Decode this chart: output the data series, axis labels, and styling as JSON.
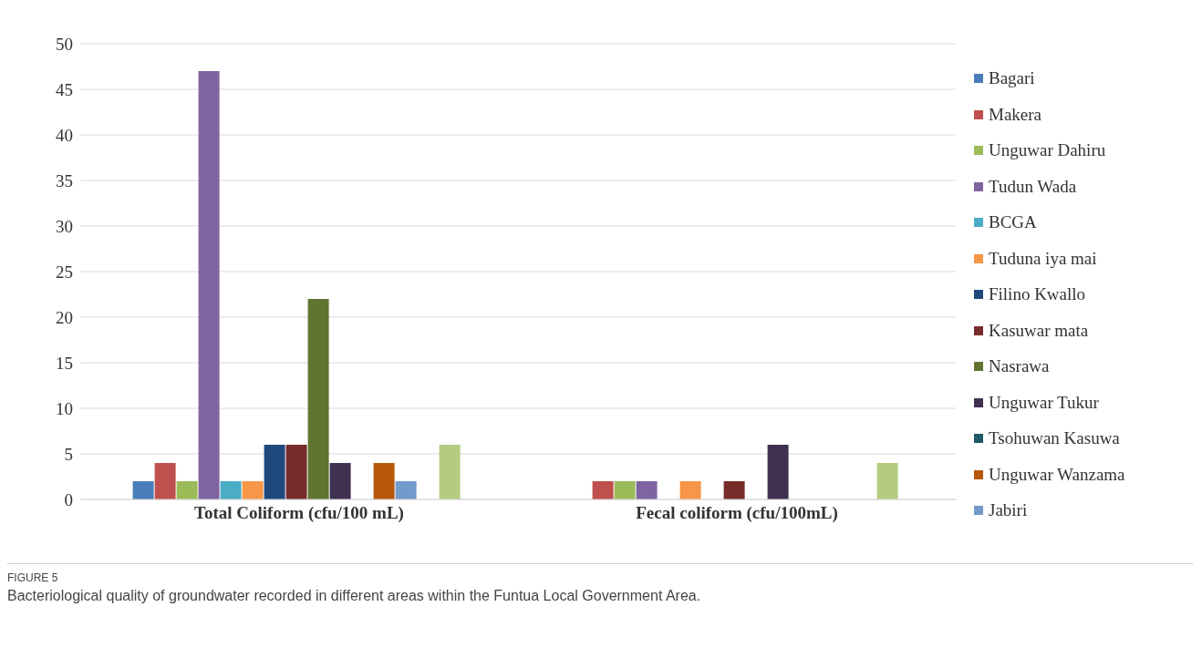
{
  "chart_data": {
    "type": "bar",
    "categories": [
      "Total Coliform (cfu/100 mL)",
      "Fecal coliform (cfu/100mL)"
    ],
    "series": [
      {
        "name": "Bagari",
        "color": "#4a7ebb",
        "values": [
          2,
          0
        ]
      },
      {
        "name": "Makera",
        "color": "#c0504d",
        "values": [
          4,
          2
        ]
      },
      {
        "name": "Unguwar Dahiru",
        "color": "#9bbb59",
        "values": [
          2,
          2
        ]
      },
      {
        "name": "Tudun Wada",
        "color": "#8064a2",
        "values": [
          47,
          2
        ]
      },
      {
        "name": "BCGA",
        "color": "#4bacc6",
        "values": [
          2,
          0
        ]
      },
      {
        "name": "Tuduna iya mai",
        "color": "#f79646",
        "values": [
          2,
          2
        ]
      },
      {
        "name": "Filino Kwallo",
        "color": "#1f497d",
        "values": [
          6,
          0
        ]
      },
      {
        "name": "Kasuwar mata",
        "color": "#772c2a",
        "values": [
          6,
          2
        ]
      },
      {
        "name": "Nasrawa",
        "color": "#5f7530",
        "values": [
          22,
          0
        ]
      },
      {
        "name": "Unguwar Tukur",
        "color": "#403152",
        "values": [
          4,
          6
        ]
      },
      {
        "name": "Tsohuwan Kasuwa",
        "color": "#215968",
        "values": [
          0,
          0
        ]
      },
      {
        "name": "Unguwar Wanzama",
        "color": "#b65708",
        "values": [
          4,
          0
        ]
      },
      {
        "name": "Jabiri",
        "color": "#729aca",
        "values": [
          2,
          0
        ]
      },
      {
        "color": "#cd7371",
        "values": [
          0,
          0
        ]
      },
      {
        "color": "#b3cc82",
        "values": [
          6,
          4
        ]
      }
    ],
    "ylim": [
      0,
      50
    ],
    "yticks": [
      0,
      5,
      10,
      15,
      20,
      25,
      30,
      35,
      40,
      45,
      50
    ],
    "grid": "y",
    "legend": "right",
    "annotations": [
      "FIGURE 5",
      "Bacteriological quality of groundwater recorded in different areas within the Funtua Local Government Area."
    ]
  }
}
